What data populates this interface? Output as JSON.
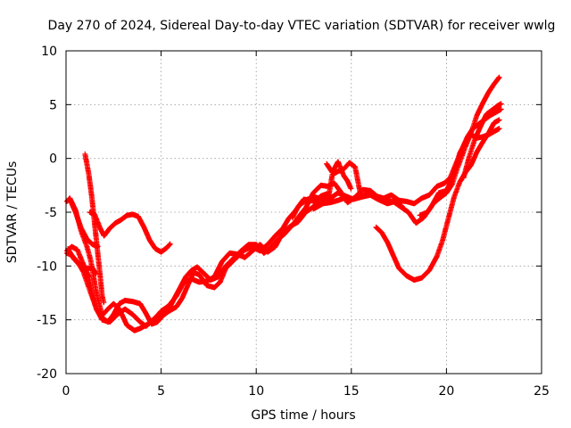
{
  "chart_data": {
    "type": "scatter",
    "title": "Day 270 of 2024, Sidereal Day-to-day VTEC variation (SDTVAR) for receiver wwlg",
    "xlabel": "GPS time / hours",
    "ylabel": "SDTVAR / TECUs",
    "xlim": [
      0,
      25
    ],
    "ylim": [
      -20,
      10
    ],
    "xticks": [
      0,
      5,
      10,
      15,
      20,
      25
    ],
    "yticks": [
      -20,
      -15,
      -10,
      -5,
      0,
      5,
      10
    ],
    "xtick_labels": [
      "0",
      "5",
      "10",
      "15",
      "20",
      "25"
    ],
    "ytick_labels": [
      "-20",
      "-15",
      "-10",
      "-5",
      "0",
      "5",
      "10"
    ],
    "grid": true,
    "marker": "plus",
    "color": "#ff0000",
    "series": [
      {
        "points": [
          [
            0.05,
            -8.6
          ],
          [
            0.3,
            -8.2
          ],
          [
            0.6,
            -8.5
          ],
          [
            0.9,
            -9.8
          ],
          [
            1.2,
            -11.0
          ],
          [
            1.4,
            -12.8
          ],
          [
            1.6,
            -14.0
          ],
          [
            1.9,
            -14.8
          ],
          [
            2.2,
            -15.2
          ],
          [
            2.5,
            -14.5
          ],
          [
            2.8,
            -13.5
          ],
          [
            3.1,
            -13.2
          ],
          [
            3.5,
            -13.3
          ],
          [
            3.9,
            -13.5
          ],
          [
            4.2,
            -14.4
          ],
          [
            4.5,
            -15.4
          ],
          [
            4.8,
            -15.2
          ],
          [
            5.1,
            -14.6
          ],
          [
            5.4,
            -14.2
          ],
          [
            5.8,
            -13.8
          ],
          [
            6.1,
            -13.0
          ],
          [
            6.4,
            -11.8
          ],
          [
            6.7,
            -10.6
          ],
          [
            7.0,
            -10.8
          ],
          [
            7.4,
            -11.8
          ],
          [
            7.8,
            -12.0
          ],
          [
            8.1,
            -11.5
          ],
          [
            8.4,
            -10.2
          ],
          [
            8.8,
            -9.5
          ],
          [
            9.1,
            -9.0
          ],
          [
            9.4,
            -8.5
          ],
          [
            9.8,
            -8.2
          ],
          [
            10.2,
            -8.6
          ],
          [
            10.6,
            -8.0
          ],
          [
            11.0,
            -7.2
          ],
          [
            11.4,
            -6.5
          ],
          [
            11.7,
            -5.6
          ],
          [
            12.0,
            -5.0
          ],
          [
            12.3,
            -4.3
          ],
          [
            12.7,
            -3.8
          ],
          [
            13.1,
            -3.6
          ],
          [
            13.5,
            -3.8
          ],
          [
            13.9,
            -3.7
          ],
          [
            14.3,
            -3.2
          ],
          [
            14.7,
            -3.5
          ],
          [
            15.1,
            -3.8
          ],
          [
            15.5,
            -3.6
          ],
          [
            16.0,
            -3.4
          ],
          [
            16.4,
            -3.8
          ],
          [
            16.9,
            -4.2
          ],
          [
            17.3,
            -4.0
          ],
          [
            17.7,
            -4.5
          ]
        ]
      },
      {
        "points": [
          [
            0.05,
            -4.0
          ],
          [
            0.2,
            -3.7
          ],
          [
            0.5,
            -4.8
          ],
          [
            0.8,
            -6.8
          ],
          [
            1.1,
            -8.2
          ],
          [
            1.3,
            -9.5
          ],
          [
            1.6,
            -12.5
          ],
          [
            1.9,
            -14.6
          ],
          [
            2.2,
            -14.0
          ],
          [
            2.5,
            -13.5
          ],
          [
            2.8,
            -14.0
          ],
          [
            3.2,
            -15.5
          ],
          [
            3.6,
            -16.0
          ],
          [
            3.9,
            -15.8
          ],
          [
            4.3,
            -15.4
          ],
          [
            4.7,
            -14.8
          ],
          [
            5.1,
            -14.5
          ],
          [
            5.4,
            -14.0
          ],
          [
            5.7,
            -13.0
          ],
          [
            6.0,
            -12.0
          ],
          [
            6.3,
            -11.0
          ],
          [
            6.6,
            -10.4
          ],
          [
            6.9,
            -10.1
          ],
          [
            7.2,
            -10.6
          ],
          [
            7.6,
            -11.3
          ],
          [
            8.0,
            -11.0
          ],
          [
            8.4,
            -10.0
          ],
          [
            8.8,
            -9.3
          ],
          [
            9.2,
            -8.6
          ],
          [
            9.6,
            -8.0
          ],
          [
            10.0,
            -8.0
          ],
          [
            10.4,
            -8.8
          ],
          [
            10.7,
            -8.4
          ],
          [
            11.1,
            -7.6
          ],
          [
            11.5,
            -7.0
          ],
          [
            11.9,
            -6.2
          ],
          [
            12.2,
            -5.5
          ],
          [
            12.6,
            -4.6
          ],
          [
            13.0,
            -3.2
          ],
          [
            13.4,
            -2.5
          ],
          [
            13.8,
            -2.6
          ],
          [
            14.1,
            -2.3
          ],
          [
            14.4,
            -3.0
          ],
          [
            14.8,
            -4.1
          ],
          [
            15.2,
            -3.6
          ],
          [
            15.6,
            -2.9
          ],
          [
            16.0,
            -3.0
          ],
          [
            16.4,
            -3.6
          ],
          [
            16.8,
            -3.9
          ],
          [
            17.2,
            -4.0
          ],
          [
            17.6,
            -4.5
          ],
          [
            18.0,
            -5.0
          ],
          [
            18.4,
            -6.0
          ],
          [
            18.8,
            -5.5
          ],
          [
            19.2,
            -4.5
          ],
          [
            19.6,
            -3.2
          ],
          [
            20.0,
            -3.0
          ],
          [
            20.4,
            -1.5
          ],
          [
            20.7,
            0.5
          ],
          [
            21.0,
            1.5
          ],
          [
            21.3,
            2.2
          ],
          [
            21.6,
            1.9
          ],
          [
            21.9,
            2.0
          ],
          [
            22.2,
            2.2
          ],
          [
            22.5,
            2.5
          ],
          [
            22.8,
            2.8
          ]
        ]
      },
      {
        "points": [
          [
            0.05,
            -8.8
          ],
          [
            0.3,
            -9.0
          ],
          [
            0.6,
            -9.6
          ],
          [
            0.9,
            -10.5
          ],
          [
            1.3,
            -12.5
          ],
          [
            1.6,
            -14.0
          ],
          [
            1.9,
            -15.0
          ],
          [
            2.3,
            -15.2
          ],
          [
            2.7,
            -14.5
          ],
          [
            3.1,
            -14.0
          ],
          [
            3.5,
            -14.5
          ],
          [
            3.9,
            -15.2
          ],
          [
            4.2,
            -15.6
          ],
          [
            4.6,
            -15.0
          ],
          [
            5.0,
            -14.2
          ],
          [
            5.4,
            -13.7
          ],
          [
            5.8,
            -12.8
          ],
          [
            6.2,
            -11.5
          ],
          [
            6.6,
            -11.2
          ],
          [
            7.0,
            -11.5
          ],
          [
            7.4,
            -11.4
          ],
          [
            7.8,
            -11.0
          ],
          [
            8.2,
            -9.6
          ],
          [
            8.6,
            -8.8
          ],
          [
            9.0,
            -8.9
          ],
          [
            9.4,
            -9.2
          ],
          [
            9.8,
            -8.6
          ],
          [
            10.2,
            -8.0
          ],
          [
            10.6,
            -8.7
          ],
          [
            11.0,
            -8.2
          ],
          [
            11.4,
            -6.9
          ],
          [
            11.8,
            -6.3
          ],
          [
            12.2,
            -5.9
          ],
          [
            12.6,
            -5.0
          ],
          [
            13.0,
            -4.5
          ],
          [
            13.4,
            -3.8
          ],
          [
            13.8,
            -3.6
          ],
          [
            14.0,
            -1.5
          ],
          [
            14.3,
            -1.2
          ],
          [
            14.6,
            -1.0
          ],
          [
            14.9,
            -0.4
          ],
          [
            15.2,
            -0.8
          ],
          [
            15.5,
            -3.5
          ],
          [
            15.9,
            -3.3
          ],
          [
            16.3,
            -3.5
          ],
          [
            16.7,
            -3.7
          ],
          [
            17.1,
            -3.4
          ],
          [
            17.5,
            -3.9
          ],
          [
            17.9,
            -4.0
          ],
          [
            18.3,
            -4.2
          ],
          [
            18.7,
            -3.7
          ],
          [
            19.1,
            -3.4
          ],
          [
            19.5,
            -2.6
          ],
          [
            19.9,
            -2.3
          ],
          [
            20.2,
            -1.8
          ],
          [
            20.5,
            -0.5
          ],
          [
            20.8,
            0.8
          ],
          [
            21.1,
            2.0
          ],
          [
            21.4,
            2.8
          ],
          [
            21.7,
            3.2
          ],
          [
            22.0,
            3.6
          ],
          [
            22.3,
            4.0
          ],
          [
            22.6,
            4.3
          ],
          [
            22.9,
            4.6
          ]
        ]
      },
      {
        "points": [
          [
            0.1,
            -8.4
          ],
          [
            0.4,
            -9.3
          ],
          [
            0.7,
            -9.9
          ],
          [
            1.0,
            -10.2
          ],
          [
            1.4,
            -10.2
          ],
          [
            1.6,
            -10.8
          ]
        ]
      },
      {
        "points": [
          [
            0.2,
            -3.8
          ],
          [
            0.5,
            -5.0
          ],
          [
            0.8,
            -6.5
          ],
          [
            1.1,
            -7.5
          ],
          [
            1.4,
            -8.0
          ],
          [
            1.7,
            -8.2
          ]
        ]
      },
      {
        "points": [
          [
            1.0,
            0.4
          ],
          [
            1.2,
            -1.5
          ],
          [
            1.35,
            -3.5
          ],
          [
            1.5,
            -6.0
          ],
          [
            1.65,
            -8.5
          ],
          [
            1.8,
            -11.0
          ],
          [
            1.9,
            -12.8
          ],
          [
            2.0,
            -13.5
          ]
        ]
      },
      {
        "points": [
          [
            1.25,
            -5.0
          ],
          [
            1.5,
            -5.2
          ],
          [
            1.8,
            -6.5
          ],
          [
            2.0,
            -7.2
          ],
          [
            2.3,
            -6.5
          ],
          [
            2.6,
            -6.0
          ],
          [
            2.9,
            -5.7
          ],
          [
            3.2,
            -5.3
          ],
          [
            3.5,
            -5.2
          ],
          [
            3.8,
            -5.4
          ],
          [
            4.1,
            -6.4
          ],
          [
            4.4,
            -7.6
          ],
          [
            4.7,
            -8.4
          ],
          [
            5.0,
            -8.7
          ],
          [
            5.3,
            -8.3
          ],
          [
            5.5,
            -7.9
          ]
        ]
      },
      {
        "points": [
          [
            11.9,
            -5.5
          ],
          [
            12.2,
            -4.5
          ],
          [
            12.5,
            -3.8
          ],
          [
            12.8,
            -3.9
          ],
          [
            13.1,
            -4.0
          ],
          [
            13.4,
            -3.5
          ],
          [
            13.7,
            -3.3
          ],
          [
            14.0,
            -3.7
          ]
        ]
      },
      {
        "points": [
          [
            13.7,
            -0.5
          ],
          [
            14.0,
            -1.3
          ],
          [
            14.3,
            -0.3
          ],
          [
            14.6,
            -1.6
          ],
          [
            14.8,
            -2.1
          ],
          [
            15.0,
            -2.9
          ]
        ]
      },
      {
        "points": [
          [
            13.0,
            -4.7
          ],
          [
            13.5,
            -4.2
          ],
          [
            13.9,
            -4.1
          ],
          [
            14.3,
            -3.9
          ],
          [
            14.6,
            -3.7
          ],
          [
            14.9,
            -3.9
          ]
        ]
      },
      {
        "points": [
          [
            16.3,
            -6.4
          ],
          [
            16.6,
            -6.9
          ],
          [
            16.9,
            -7.8
          ],
          [
            17.2,
            -9.0
          ],
          [
            17.5,
            -10.2
          ],
          [
            17.9,
            -10.9
          ],
          [
            18.3,
            -11.3
          ],
          [
            18.7,
            -11.1
          ],
          [
            19.1,
            -10.4
          ],
          [
            19.5,
            -9.1
          ],
          [
            19.8,
            -7.6
          ],
          [
            20.1,
            -5.6
          ],
          [
            20.4,
            -3.6
          ],
          [
            20.7,
            -2.2
          ],
          [
            21.0,
            -1.3
          ],
          [
            21.3,
            -0.6
          ],
          [
            21.6,
            0.6
          ],
          [
            21.9,
            1.5
          ],
          [
            22.2,
            2.3
          ],
          [
            22.5,
            3.3
          ],
          [
            22.8,
            3.6
          ]
        ]
      },
      {
        "points": [
          [
            18.6,
            -5.3
          ],
          [
            19.0,
            -5.0
          ],
          [
            19.3,
            -4.2
          ],
          [
            19.7,
            -3.6
          ],
          [
            20.0,
            -3.2
          ],
          [
            20.3,
            -2.4
          ],
          [
            20.6,
            -0.8
          ],
          [
            21.0,
            1.1
          ],
          [
            21.3,
            2.4
          ],
          [
            21.6,
            4.0
          ],
          [
            21.9,
            5.1
          ],
          [
            22.2,
            6.1
          ],
          [
            22.5,
            6.9
          ],
          [
            22.8,
            7.6
          ]
        ]
      },
      {
        "points": [
          [
            20.9,
            -1.8
          ],
          [
            21.2,
            0.2
          ],
          [
            21.5,
            1.8
          ],
          [
            21.8,
            3.0
          ],
          [
            22.1,
            4.1
          ],
          [
            22.4,
            4.5
          ],
          [
            22.7,
            4.9
          ],
          [
            22.9,
            5.1
          ]
        ]
      }
    ]
  }
}
